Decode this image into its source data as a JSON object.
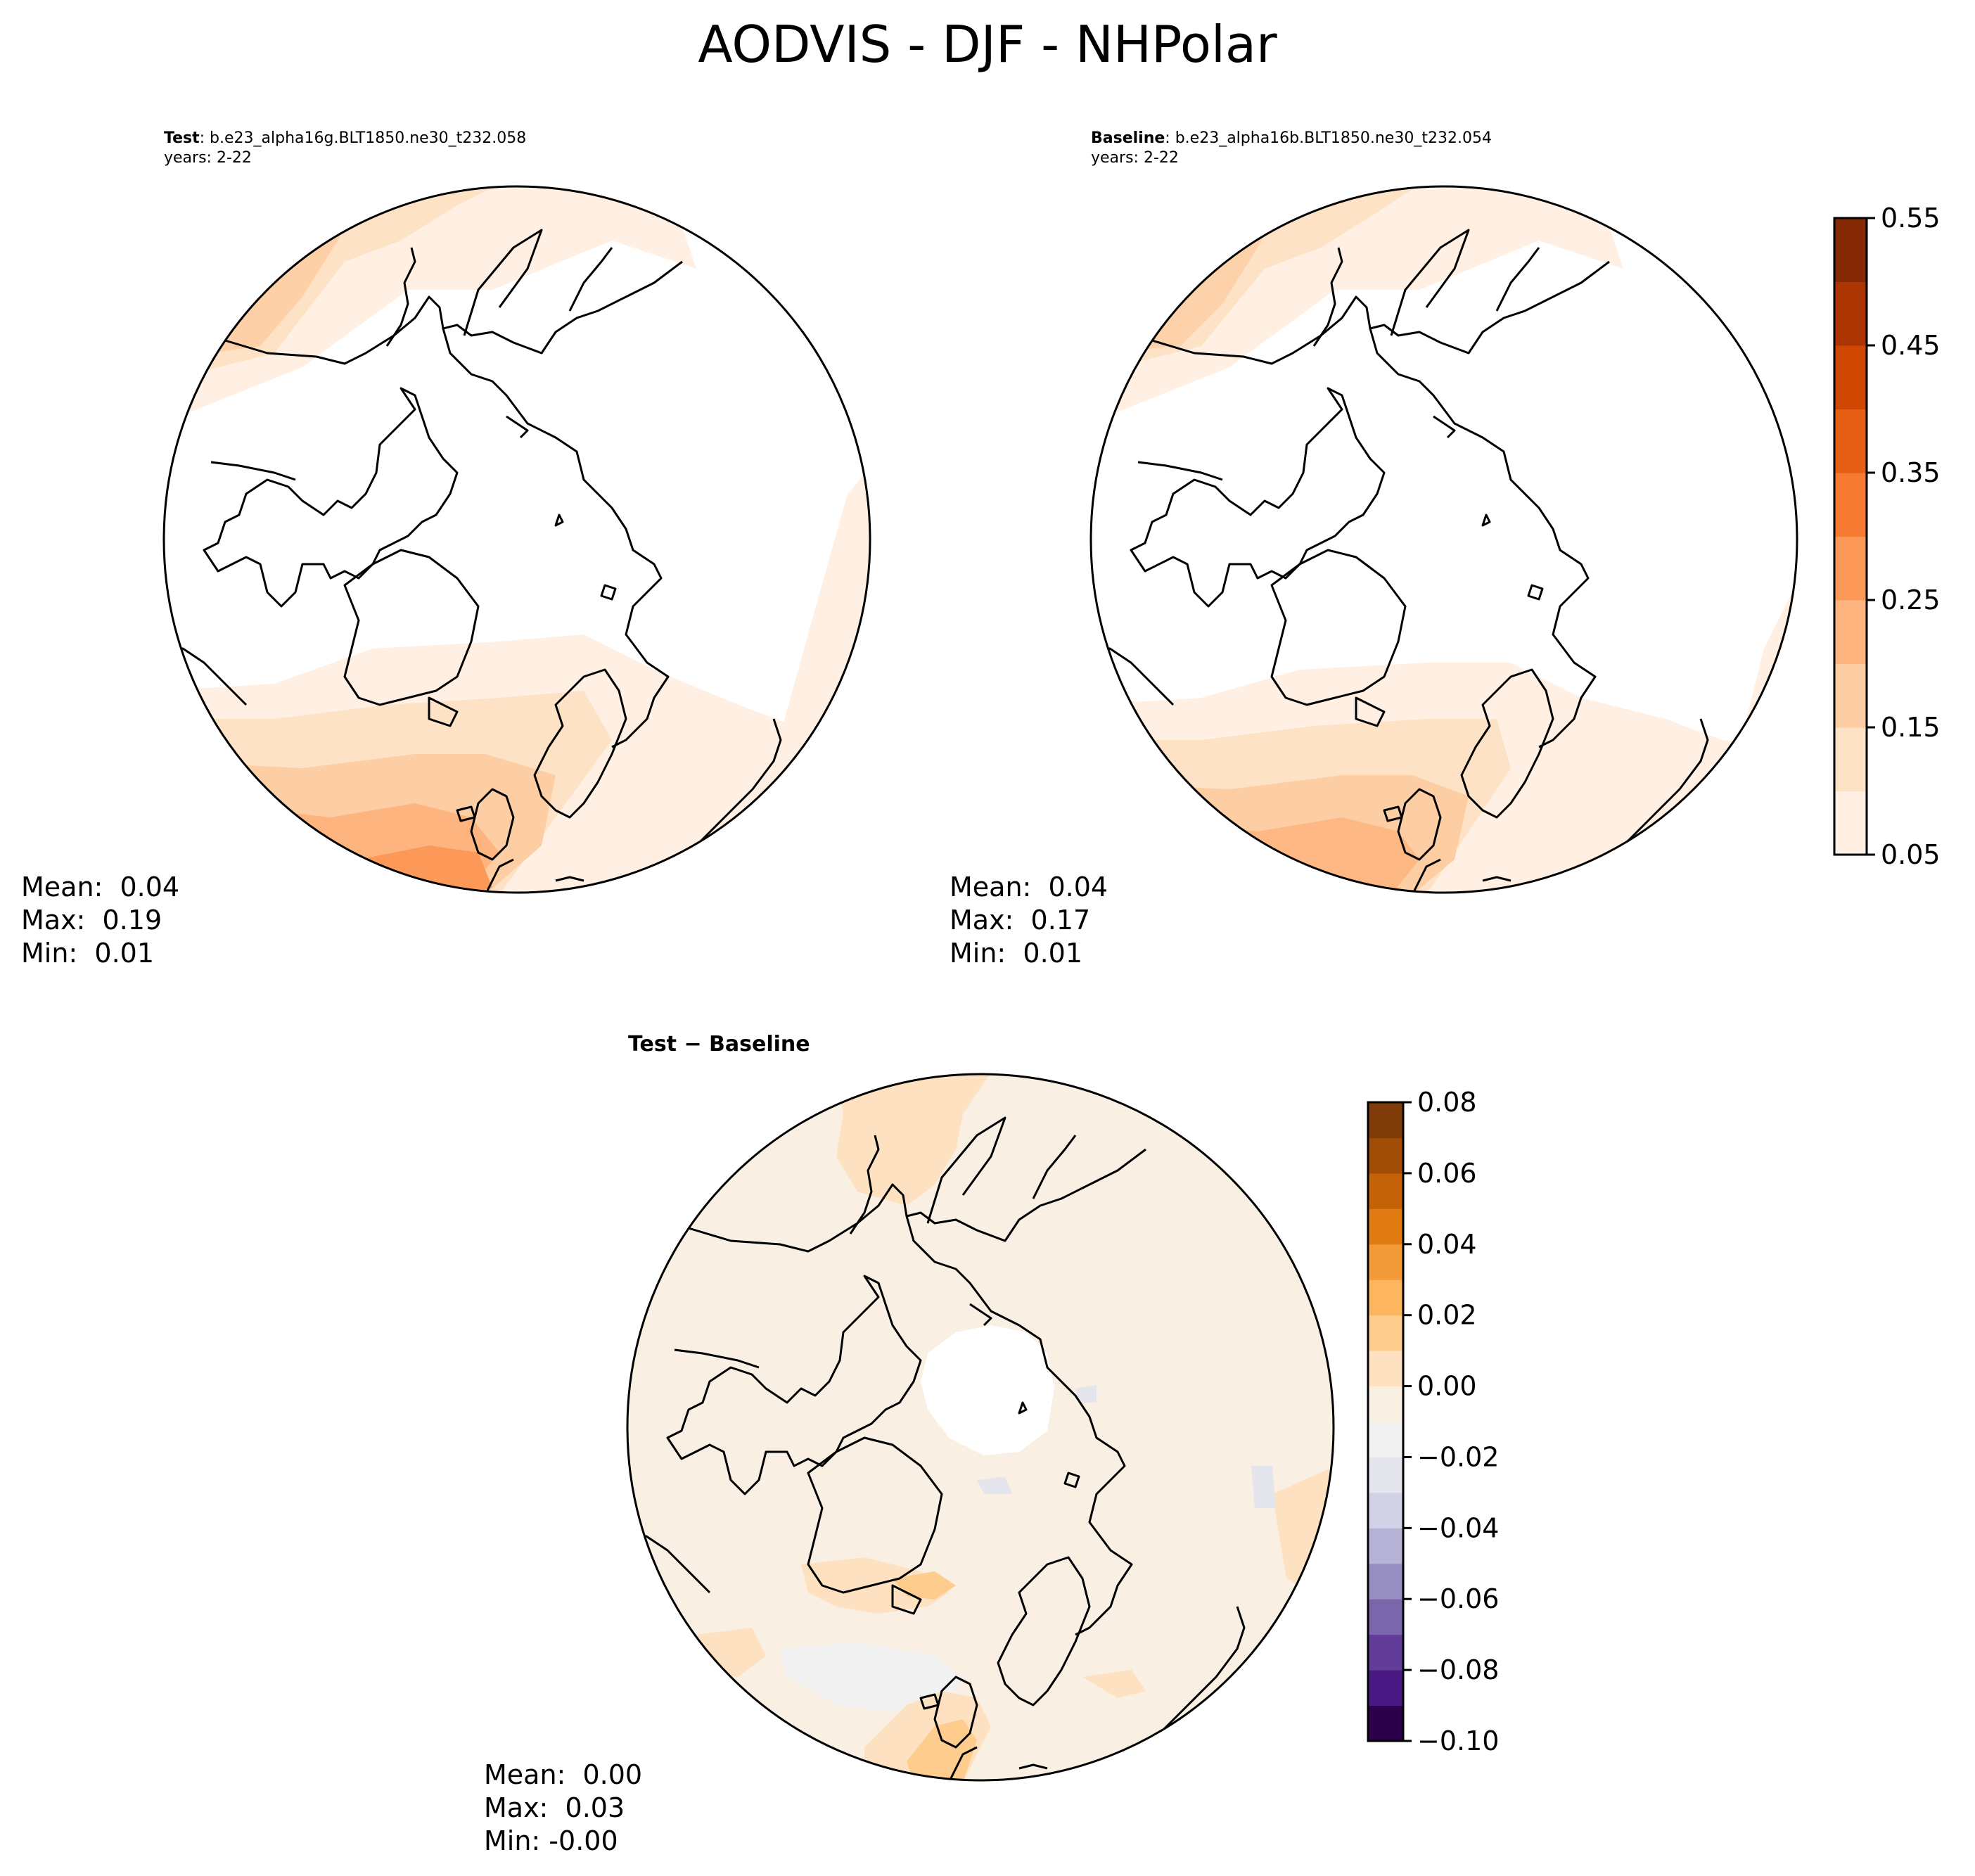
{
  "title": "AODVIS - DJF - NHPolar",
  "panels": {
    "test": {
      "label_bold": "Test",
      "case": ": b.e23_alpha16g.BLT1850.ne30_t232.058",
      "years": "years: 2-22",
      "stats": {
        "mean": "Mean:  0.04",
        "max": "Max:  0.19",
        "min": "Min:  0.01"
      }
    },
    "baseline": {
      "label_bold": "Baseline",
      "case": ": b.e23_alpha16b.BLT1850.ne30_t232.054",
      "years": "years: 2-22",
      "stats": {
        "mean": "Mean:  0.04",
        "max": "Max:  0.17",
        "min": "Min:  0.01"
      }
    },
    "diff": {
      "title": "Test − Baseline",
      "stats": {
        "mean": "Mean:  0.00",
        "max": "Max:  0.03",
        "min": "Min: -0.00"
      }
    }
  },
  "colorbars": {
    "main": {
      "ticks": [
        "0.05",
        "0.15",
        "0.25",
        "0.35",
        "0.45",
        "0.55"
      ],
      "colors": [
        "#fff0e3",
        "#fee2c6",
        "#fdcea3",
        "#fdb47e",
        "#fc9858",
        "#f67a31",
        "#e65f14",
        "#d04603",
        "#ab3503",
        "#852a04"
      ]
    },
    "diff": {
      "ticks": [
        "−0.10",
        "−0.08",
        "−0.06",
        "−0.04",
        "−0.02",
        "0.00",
        "0.02",
        "0.04",
        "0.06",
        "0.08"
      ],
      "colors": [
        "#2d004b",
        "#4a1a84",
        "#613c99",
        "#7a66ab",
        "#968ec0",
        "#b6b3d7",
        "#d2d2e7",
        "#e5e5ee",
        "#f1f1f1",
        "#f9efe2",
        "#fde1c0",
        "#fecc8d",
        "#fdb55f",
        "#f49b39",
        "#e17b14",
        "#c46208",
        "#a14d07",
        "#7f3b08"
      ]
    }
  },
  "chart_data": {
    "type": "heatmap",
    "variable": "AODVIS",
    "season": "DJF",
    "region": "NHPolar",
    "panels": [
      {
        "name": "Test",
        "case": "b.e23_alpha16g.BLT1850.ne30_t232.058",
        "years": "2-22",
        "mean": 0.04,
        "max": 0.19,
        "min": 0.01,
        "levels": [
          0.05,
          0.1,
          0.15,
          0.2,
          0.25,
          0.3,
          0.35,
          0.4,
          0.45,
          0.5,
          0.55
        ]
      },
      {
        "name": "Baseline",
        "case": "b.e23_alpha16b.BLT1850.ne30_t232.054",
        "years": "2-22",
        "mean": 0.04,
        "max": 0.17,
        "min": 0.01,
        "levels": [
          0.05,
          0.1,
          0.15,
          0.2,
          0.25,
          0.3,
          0.35,
          0.4,
          0.45,
          0.5,
          0.55
        ]
      },
      {
        "name": "Test − Baseline",
        "mean": 0.0,
        "max": 0.03,
        "min": -0.0,
        "levels": [
          -0.1,
          -0.09,
          -0.08,
          -0.07,
          -0.06,
          -0.05,
          -0.04,
          -0.03,
          -0.02,
          -0.01,
          0.0,
          0.01,
          0.02,
          0.03,
          0.04,
          0.05,
          0.06,
          0.07,
          0.08,
          0.09
        ]
      }
    ]
  }
}
